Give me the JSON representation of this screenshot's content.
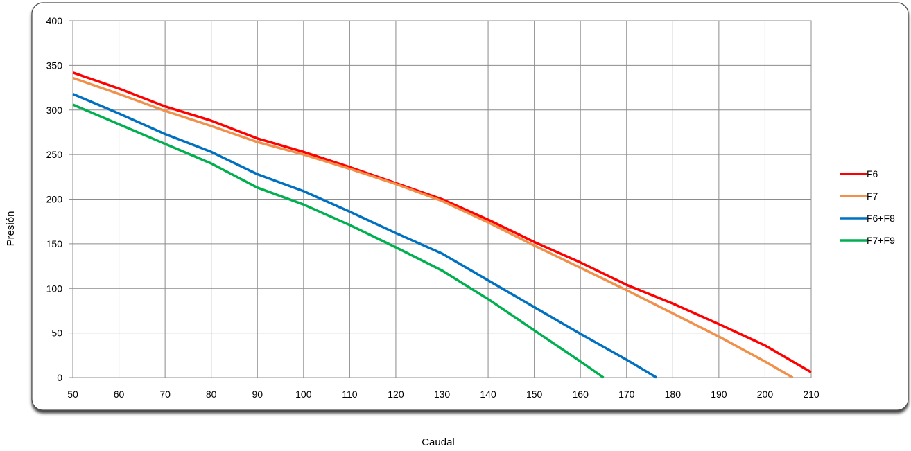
{
  "chart_data": {
    "type": "line",
    "title": "",
    "xlabel": "Caudal",
    "ylabel": "Presión",
    "xlim": [
      50,
      210
    ],
    "ylim": [
      0,
      400
    ],
    "x_ticks": [
      50,
      60,
      70,
      80,
      90,
      100,
      110,
      120,
      130,
      140,
      150,
      160,
      170,
      180,
      190,
      200,
      210
    ],
    "y_ticks": [
      0,
      50,
      100,
      150,
      200,
      250,
      300,
      350,
      400
    ],
    "grid": true,
    "legend_position": "right",
    "series": [
      {
        "name": "F6",
        "color": "#ff0000",
        "points": [
          [
            50,
            342
          ],
          [
            60,
            324
          ],
          [
            70,
            304
          ],
          [
            80,
            288
          ],
          [
            90,
            268
          ],
          [
            100,
            253
          ],
          [
            110,
            236
          ],
          [
            120,
            218
          ],
          [
            130,
            200
          ],
          [
            140,
            177
          ],
          [
            150,
            152
          ],
          [
            160,
            129
          ],
          [
            170,
            104
          ],
          [
            180,
            83
          ],
          [
            190,
            60
          ],
          [
            200,
            36
          ],
          [
            210,
            6
          ]
        ]
      },
      {
        "name": "F7",
        "color": "#f0904a",
        "points": [
          [
            50,
            336
          ],
          [
            60,
            318
          ],
          [
            70,
            299
          ],
          [
            80,
            282
          ],
          [
            90,
            264
          ],
          [
            100,
            250
          ],
          [
            110,
            234
          ],
          [
            120,
            217
          ],
          [
            130,
            198
          ],
          [
            140,
            174
          ],
          [
            150,
            148
          ],
          [
            160,
            123
          ],
          [
            170,
            98
          ],
          [
            180,
            72
          ],
          [
            190,
            46
          ],
          [
            200,
            18
          ],
          [
            206,
            0
          ]
        ]
      },
      {
        "name": "F6+F8",
        "color": "#0070c0",
        "points": [
          [
            50,
            318
          ],
          [
            60,
            296
          ],
          [
            70,
            273
          ],
          [
            80,
            253
          ],
          [
            90,
            228
          ],
          [
            100,
            209
          ],
          [
            110,
            186
          ],
          [
            120,
            162
          ],
          [
            130,
            139
          ],
          [
            140,
            109
          ],
          [
            150,
            79
          ],
          [
            160,
            49
          ],
          [
            170,
            20
          ],
          [
            176.5,
            0
          ]
        ]
      },
      {
        "name": "F7+F9",
        "color": "#00b050",
        "points": [
          [
            50,
            306
          ],
          [
            60,
            284
          ],
          [
            70,
            262
          ],
          [
            80,
            240
          ],
          [
            90,
            213
          ],
          [
            100,
            194
          ],
          [
            110,
            171
          ],
          [
            120,
            146
          ],
          [
            130,
            120
          ],
          [
            140,
            88
          ],
          [
            150,
            53
          ],
          [
            160,
            18
          ],
          [
            165,
            0
          ]
        ]
      }
    ]
  }
}
